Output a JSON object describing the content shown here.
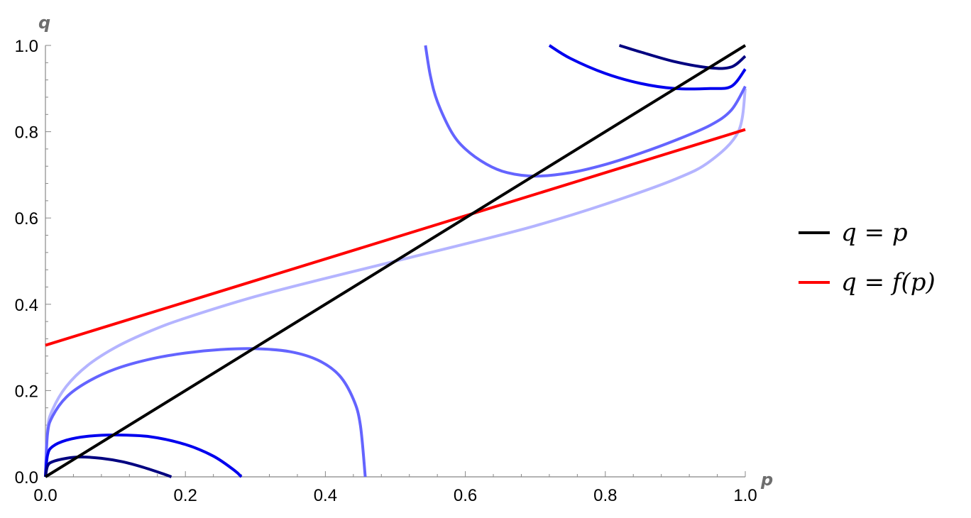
{
  "chart_data": {
    "type": "line",
    "xlabel": "p",
    "ylabel": "q",
    "xlim": [
      0,
      1
    ],
    "ylim": [
      0,
      1
    ],
    "xticks": [
      "0.0",
      "0.2",
      "0.4",
      "0.6",
      "0.8",
      "1.0"
    ],
    "yticks": [
      "0.0",
      "0.2",
      "0.4",
      "0.6",
      "0.8",
      "1.0"
    ],
    "legend_position": "right",
    "series": [
      {
        "name": "q = p",
        "color": "#000000",
        "x": [
          0,
          1
        ],
        "y": [
          0,
          1
        ]
      },
      {
        "name": "q = f(p)",
        "color": "#ff0000",
        "x": [
          0,
          1
        ],
        "y": [
          0.305,
          0.805
        ]
      },
      {
        "color": "#000080",
        "x": [
          0,
          0.003,
          0.01,
          0.03,
          0.05,
          0.08,
          0.11,
          0.14,
          0.17,
          0.18
        ],
        "y": [
          0,
          0.025,
          0.035,
          0.043,
          0.046,
          0.043,
          0.035,
          0.022,
          0.006,
          0
        ]
      },
      {
        "color": "#0000ee",
        "x": [
          0,
          0.003,
          0.01,
          0.03,
          0.06,
          0.1,
          0.15,
          0.2,
          0.24,
          0.27,
          0.28
        ],
        "y": [
          0,
          0.05,
          0.07,
          0.085,
          0.094,
          0.097,
          0.093,
          0.075,
          0.048,
          0.015,
          0
        ]
      },
      {
        "color": "#6464ff",
        "x": [
          0,
          0.003,
          0.01,
          0.03,
          0.06,
          0.1,
          0.15,
          0.2,
          0.25,
          0.3,
          0.35,
          0.39,
          0.42,
          0.44,
          0.45,
          0.457
        ],
        "y": [
          0,
          0.1,
          0.14,
          0.185,
          0.22,
          0.25,
          0.273,
          0.287,
          0.295,
          0.297,
          0.29,
          0.27,
          0.235,
          0.18,
          0.12,
          0
        ]
      },
      {
        "color": "#b4b4ff",
        "x": [
          0,
          0.003,
          0.01,
          0.03,
          0.06,
          0.1,
          0.15,
          0.2,
          0.3,
          0.4,
          0.5,
          0.6,
          0.7,
          0.8,
          0.9,
          0.95,
          0.99,
          1.0
        ],
        "y": [
          0,
          0.11,
          0.155,
          0.21,
          0.258,
          0.3,
          0.338,
          0.368,
          0.418,
          0.46,
          0.5,
          0.54,
          0.582,
          0.632,
          0.69,
          0.732,
          0.8,
          0.9
        ]
      },
      {
        "color": "#6464ff",
        "x": [
          0.543,
          0.55,
          0.56,
          0.58,
          0.6,
          0.63,
          0.66,
          0.7,
          0.75,
          0.8,
          0.85,
          0.9,
          0.95,
          0.98,
          1.0
        ],
        "y": [
          1.0,
          0.93,
          0.87,
          0.8,
          0.76,
          0.725,
          0.705,
          0.697,
          0.705,
          0.724,
          0.75,
          0.78,
          0.815,
          0.85,
          0.905
        ]
      },
      {
        "color": "#0000ee",
        "x": [
          0.72,
          0.75,
          0.8,
          0.85,
          0.9,
          0.95,
          0.98,
          1.0
        ],
        "y": [
          1.0,
          0.97,
          0.935,
          0.912,
          0.9,
          0.9,
          0.905,
          0.945
        ]
      },
      {
        "color": "#000080",
        "x": [
          0.82,
          0.85,
          0.9,
          0.95,
          0.98,
          1.0
        ],
        "y": [
          1.0,
          0.985,
          0.962,
          0.948,
          0.95,
          0.975
        ]
      }
    ]
  }
}
